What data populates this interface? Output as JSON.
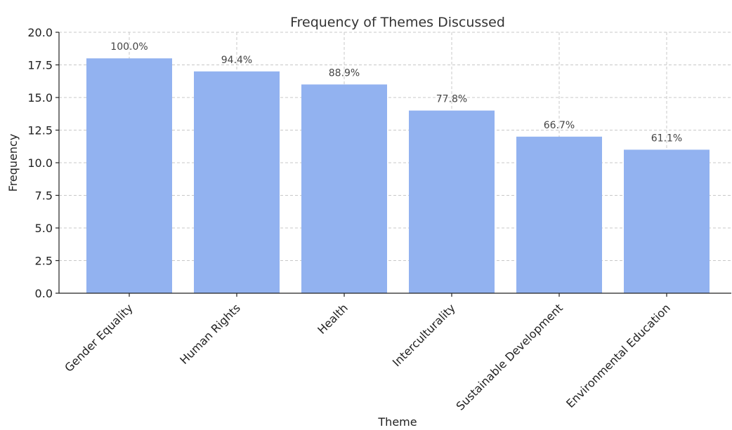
{
  "chart_data": {
    "type": "bar",
    "title": "Frequency of Themes Discussed",
    "xlabel": "Theme",
    "ylabel": "Frequency",
    "ylim": [
      0,
      20
    ],
    "yticks": [
      "0.0",
      "2.5",
      "5.0",
      "7.5",
      "10.0",
      "12.5",
      "15.0",
      "17.5",
      "20.0"
    ],
    "categories": [
      "Gender Equality",
      "Human Rights",
      "Health",
      "Interculturality",
      "Sustainable Development",
      "Environmental Education"
    ],
    "values": [
      18,
      17,
      16,
      14,
      12,
      11
    ],
    "data_labels": [
      "100.0%",
      "94.4%",
      "88.9%",
      "77.8%",
      "66.7%",
      "61.1%"
    ],
    "grid": true,
    "bar_color": "#92b2f0"
  }
}
